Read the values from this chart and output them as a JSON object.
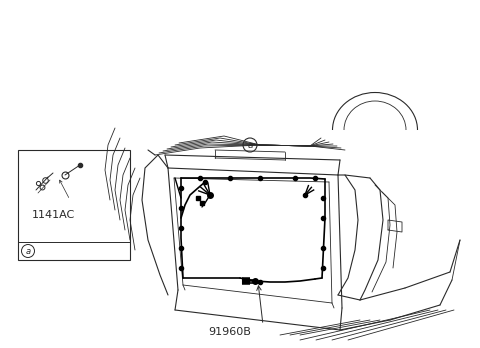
{
  "title": "91960B",
  "label_a_box": "a",
  "label_1141AC": "1141AC",
  "label_a_main": "a",
  "bg_color": "#ffffff",
  "line_color": "#2a2a2a",
  "wiring_color": "#000000",
  "fig_width": 4.8,
  "fig_height": 3.48,
  "dpi": 100
}
